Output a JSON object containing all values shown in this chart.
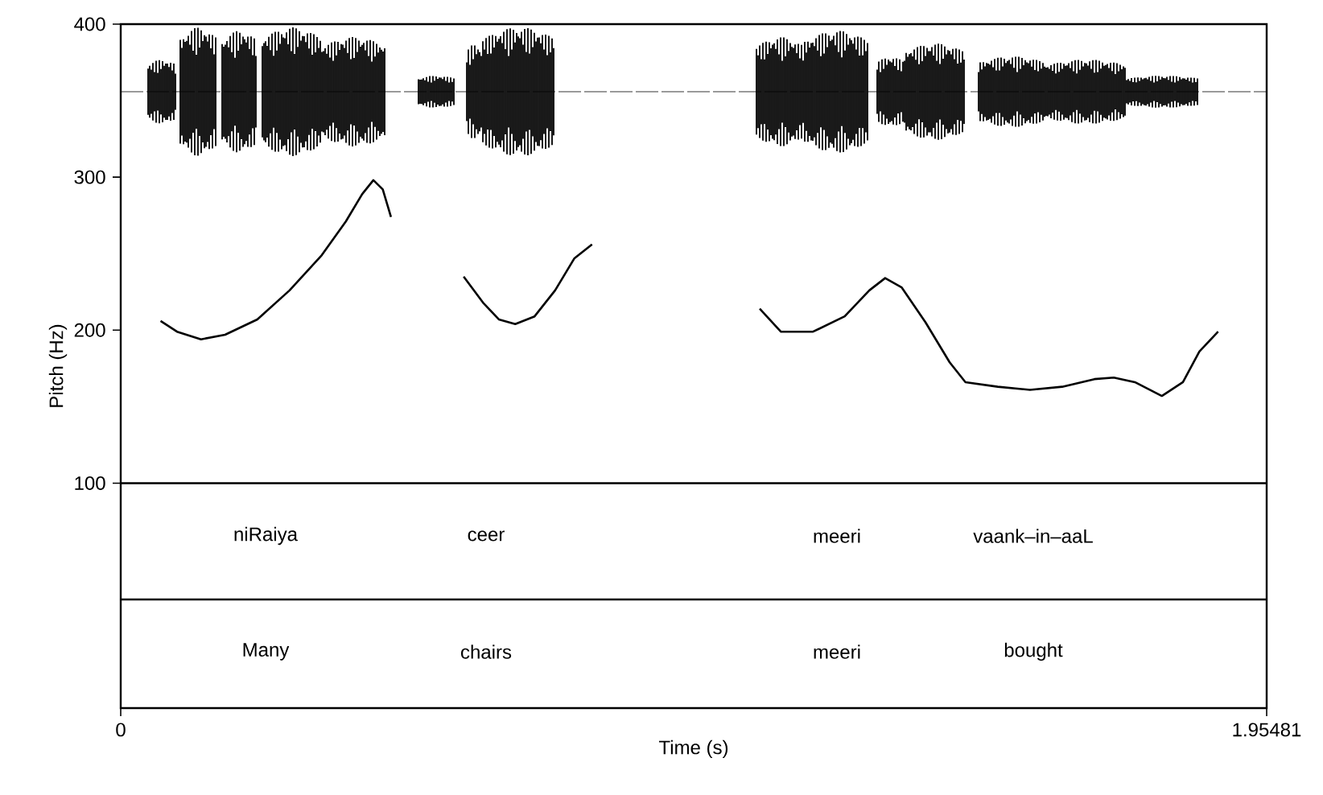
{
  "chart_data": {
    "type": "line",
    "xlabel": "Time (s)",
    "ylabel": "Pitch (Hz)",
    "xlim": [
      0,
      1.95481
    ],
    "ylim": [
      -47,
      400
    ],
    "xticks": [
      0,
      1.95481
    ],
    "yticks": [
      100,
      200,
      300,
      400
    ],
    "line_style": "solid",
    "series": [
      {
        "color": "#000000",
        "x": [
          0.068,
          0.096,
          0.137,
          0.178,
          0.233,
          0.288,
          0.343,
          0.384,
          0.412,
          0.431,
          0.447,
          0.461,
          0.52,
          0.585,
          0.618,
          0.645,
          0.673,
          0.706,
          0.741,
          0.774,
          0.804,
          0.95,
          1.09,
          1.126,
          1.181,
          1.235,
          1.277,
          1.304,
          1.332,
          1.373,
          1.414,
          1.441,
          1.496,
          1.551,
          1.606,
          1.661,
          1.694,
          1.73,
          1.776,
          1.812,
          1.84,
          1.872
        ],
        "values": [
          206,
          199,
          194,
          197,
          207,
          226,
          249,
          271,
          289,
          298,
          292,
          274,
          null,
          235,
          218,
          207,
          204,
          209,
          226,
          247,
          256,
          null,
          214,
          199,
          199,
          209,
          226,
          234,
          228,
          205,
          179,
          166,
          163,
          161,
          163,
          168,
          169,
          166,
          157,
          166,
          186,
          199
        ]
      }
    ],
    "ref_lines": [
      {
        "axis": "y",
        "value": 100
      },
      {
        "axis": "y",
        "value": 24
      }
    ],
    "annotations": [
      "niRaiya",
      "ceer",
      "meeri",
      "vaank–in–aaL",
      "Many",
      "chairs",
      "meeri",
      "bought"
    ]
  }
}
